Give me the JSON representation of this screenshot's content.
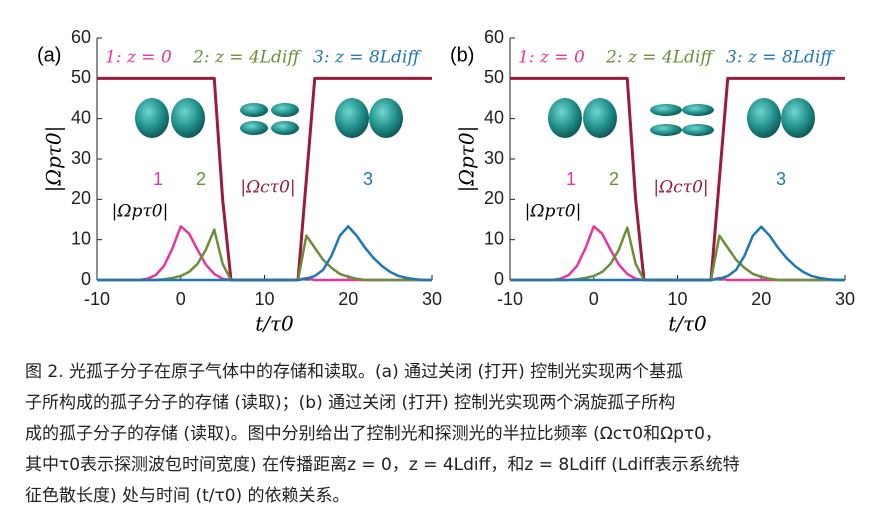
{
  "chart_data": [
    {
      "type": "line",
      "panel_label": "(a)",
      "xlabel": "t/τ0",
      "ylabel": "|Ωpτ0|",
      "xlim": [
        -10,
        30
      ],
      "xticks": [
        -10,
        0,
        10,
        20,
        30
      ],
      "ylim": [
        0,
        60
      ],
      "yticks": [
        0,
        10,
        20,
        30,
        40,
        50,
        60
      ],
      "annotations": [
        "|Ωpτ0|"
      ],
      "x": [
        -10,
        -9,
        -8,
        -7,
        -6,
        -5,
        -4,
        -3,
        -2,
        -1,
        0,
        1,
        2,
        3,
        4,
        5,
        6,
        7,
        8,
        9,
        10,
        11,
        12,
        13,
        14,
        15,
        16,
        17,
        18,
        19,
        20,
        21,
        22,
        23,
        24,
        25,
        26,
        27,
        28,
        29,
        30
      ],
      "series": [
        {
          "name": "|Ωcτ0|",
          "color": "#9b1b3b",
          "values": [
            50,
            50,
            50,
            50,
            50,
            50,
            50,
            50,
            50,
            50,
            50,
            50,
            50,
            50,
            50,
            20,
            0,
            0,
            0,
            0,
            0,
            0,
            0,
            0,
            0,
            25,
            50,
            50,
            50,
            50,
            50,
            50,
            50,
            50,
            50,
            50,
            50,
            50,
            50,
            50,
            50
          ]
        },
        {
          "name": "1: z = 0",
          "label": "1",
          "color": "#e8359e",
          "values": [
            0,
            0,
            0,
            0,
            0,
            0,
            0.3,
            1.2,
            3.5,
            7.8,
            13.3,
            11.5,
            7.5,
            3.8,
            1.5,
            0.3,
            0,
            0,
            0,
            0,
            0,
            0,
            0,
            0,
            0,
            0.5,
            0,
            0,
            0,
            0,
            0,
            0,
            0,
            0,
            0,
            0,
            0,
            0,
            0,
            0,
            0
          ]
        },
        {
          "name": "2: z = 4Ldiff",
          "label": "2",
          "color": "#6b8e3a",
          "values": [
            0,
            0,
            0,
            0,
            0,
            0,
            0,
            0,
            0.2,
            0.5,
            1,
            2,
            4,
            7.5,
            12.5,
            4,
            0,
            0,
            0,
            0,
            0,
            0,
            0,
            0,
            0,
            11,
            8,
            5,
            3,
            1.5,
            0.8,
            0.3,
            0,
            0,
            0,
            0,
            0,
            0,
            0,
            0,
            0
          ]
        },
        {
          "name": "3: z = 8Ldiff",
          "label": "3",
          "color": "#1f78b4",
          "values": [
            0,
            0,
            0,
            0,
            0,
            0,
            0,
            0,
            0,
            0,
            0,
            0,
            0,
            0,
            0,
            0,
            0,
            0,
            0,
            0,
            0,
            0,
            0,
            0,
            0,
            0.3,
            1,
            2.5,
            6,
            11,
            13.3,
            11,
            8,
            5.5,
            3.5,
            2,
            1,
            0.5,
            0.2,
            0,
            0
          ]
        }
      ]
    },
    {
      "type": "line",
      "panel_label": "(b)",
      "xlabel": "t/τ0",
      "ylabel": "|Ωpτ0|",
      "xlim": [
        -10,
        30
      ],
      "xticks": [
        -10,
        0,
        10,
        20,
        30
      ],
      "ylim": [
        0,
        60
      ],
      "yticks": [
        0,
        10,
        20,
        30,
        40,
        50,
        60
      ],
      "annotations": [
        "|Ωpτ0|"
      ],
      "x": [
        -10,
        -9,
        -8,
        -7,
        -6,
        -5,
        -4,
        -3,
        -2,
        -1,
        0,
        1,
        2,
        3,
        4,
        5,
        6,
        7,
        8,
        9,
        10,
        11,
        12,
        13,
        14,
        15,
        16,
        17,
        18,
        19,
        20,
        21,
        22,
        23,
        24,
        25,
        26,
        27,
        28,
        29,
        30
      ],
      "series": [
        {
          "name": "|Ωcτ0|",
          "color": "#9b1b3b",
          "values": [
            50,
            50,
            50,
            50,
            50,
            50,
            50,
            50,
            50,
            50,
            50,
            50,
            50,
            50,
            50,
            20,
            0,
            0,
            0,
            0,
            0,
            0,
            0,
            0,
            0,
            25,
            50,
            50,
            50,
            50,
            50,
            50,
            50,
            50,
            50,
            50,
            50,
            50,
            50,
            50,
            50
          ]
        },
        {
          "name": "1: z = 0",
          "label": "1",
          "color": "#e8359e",
          "values": [
            0,
            0,
            0,
            0,
            0,
            0,
            0.3,
            1.2,
            3.5,
            7.8,
            13.3,
            11.5,
            7.5,
            3.8,
            1.5,
            0.3,
            0,
            0,
            0,
            0,
            0,
            0,
            0,
            0,
            0,
            0.5,
            0,
            0,
            0,
            0,
            0,
            0,
            0,
            0,
            0,
            0,
            0,
            0,
            0,
            0,
            0
          ]
        },
        {
          "name": "2: z = 4Ldiff",
          "label": "2",
          "color": "#6b8e3a",
          "values": [
            0,
            0,
            0,
            0,
            0,
            0,
            0,
            0,
            0.2,
            0.5,
            1,
            2,
            4,
            7.5,
            13,
            4,
            0,
            0,
            0,
            0,
            0,
            0,
            0,
            0,
            0,
            11,
            8,
            5,
            3,
            1.5,
            0.8,
            0.3,
            0,
            0,
            0,
            0,
            0,
            0,
            0,
            0,
            0
          ]
        },
        {
          "name": "3: z = 8Ldiff",
          "label": "3",
          "color": "#1f78b4",
          "values": [
            0,
            0,
            0,
            0,
            0,
            0,
            0,
            0,
            0,
            0,
            0,
            0,
            0,
            0,
            0,
            0,
            0,
            0,
            0,
            0,
            0,
            0,
            0,
            0,
            0,
            0.3,
            1,
            2.5,
            6,
            11,
            13.2,
            11,
            8,
            5.5,
            3.5,
            2,
            1,
            0.5,
            0.2,
            0,
            0
          ]
        }
      ]
    }
  ],
  "caption": [
    "图 2. 光孤子分子在原子气体中的存储和读取。(a) 通过关闭 (打开) 控制光实现两个基孤",
    "子所构成的孤子分子的存储 (读取)；(b) 通过关闭 (打开) 控制光实现两个涡旋孤子所构",
    "成的孤子分子的存储 (读取)。图中分别给出了控制光和探测光的半拉比频率 (Ωcτ0和Ωpτ0，",
    "其中τ0表示探测波包时间宽度) 在传播距离z = 0，z = 4Ldiff，和z = 8Ldiff (Ldiff表示系统特",
    "征色散长度) 处与时间 (t/τ0) 的依赖关系。"
  ]
}
